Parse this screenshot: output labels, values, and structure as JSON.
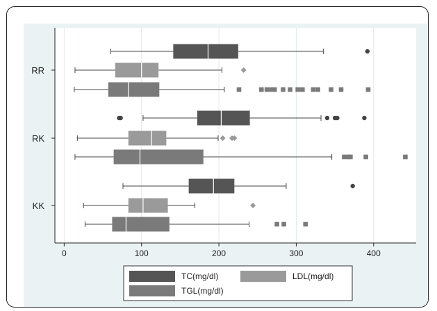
{
  "chart_data": {
    "type": "box",
    "orientation": "horizontal",
    "title": "",
    "xlabel": "",
    "ylabel": "",
    "xlim": [
      -12,
      455
    ],
    "xticks": [
      0,
      100,
      200,
      300,
      400
    ],
    "grid": "vertical",
    "legend_position": "bottom",
    "categories": [
      "RR",
      "RK",
      "KK"
    ],
    "series": [
      {
        "name": "TC(mg/dl)",
        "color": "#555555",
        "boxes": [
          {
            "category": "RR",
            "min": 60,
            "q1": 141,
            "median": 186,
            "q3": 225,
            "max": 335,
            "outliers": [
              392
            ]
          },
          {
            "category": "RK",
            "min": 102,
            "q1": 172,
            "median": 203,
            "q3": 240,
            "max": 332,
            "outliers": [
              71,
              73,
              340,
              350,
              353,
              388
            ]
          },
          {
            "category": "KK",
            "min": 76,
            "q1": 161,
            "median": 193,
            "q3": 220,
            "max": 287,
            "outliers": [
              373
            ]
          }
        ]
      },
      {
        "name": "LDL(mg/dl)",
        "color": "#9a9a9a",
        "boxes": [
          {
            "category": "RR",
            "min": 14,
            "q1": 66,
            "median": 100,
            "q3": 122,
            "max": 204,
            "outliers": [
              232
            ]
          },
          {
            "category": "RK",
            "min": 17,
            "q1": 83,
            "median": 113,
            "q3": 132,
            "max": 199,
            "outliers": [
              205,
              217,
              220
            ]
          },
          {
            "category": "KK",
            "min": 25,
            "q1": 83,
            "median": 102,
            "q3": 134,
            "max": 169,
            "outliers": [
              244
            ]
          }
        ]
      },
      {
        "name": "TGL(mg/dl)",
        "color": "#7a7a7a",
        "boxes": [
          {
            "category": "RR",
            "min": 13,
            "q1": 57,
            "median": 83,
            "q3": 123,
            "max": 207,
            "outliers": [
              226,
              255,
              262,
              268,
              272,
              283,
              292,
              302,
              308,
              322,
              328,
              345,
              358,
              393
            ]
          },
          {
            "category": "RK",
            "min": 14,
            "q1": 64,
            "median": 98,
            "q3": 180,
            "max": 346,
            "outliers": [
              362,
              367,
              370,
              390,
              441
            ]
          },
          {
            "category": "KK",
            "min": 27,
            "q1": 62,
            "median": 80,
            "q3": 136,
            "max": 239,
            "outliers": [
              275,
              284,
              312
            ]
          }
        ]
      }
    ]
  }
}
